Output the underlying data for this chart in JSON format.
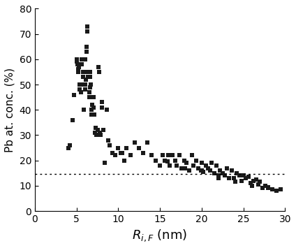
{
  "ylabel": "Pb at. conc. (%)",
  "xlim": [
    0,
    30
  ],
  "ylim": [
    0,
    80
  ],
  "xticks": [
    0,
    5,
    10,
    15,
    20,
    25,
    30
  ],
  "yticks": [
    0,
    10,
    20,
    30,
    40,
    50,
    60,
    70,
    80
  ],
  "dotted_line_y": 14.7,
  "marker_size": 16,
  "marker_color": "#1a1a1a",
  "scatter_x": [
    4.0,
    4.2,
    4.5,
    4.7,
    5.0,
    5.1,
    5.2,
    5.3,
    5.4,
    5.5,
    5.6,
    5.7,
    5.8,
    5.9,
    6.0,
    6.0,
    6.1,
    6.1,
    6.2,
    6.2,
    6.3,
    6.3,
    6.4,
    6.5,
    6.5,
    6.6,
    6.6,
    6.7,
    6.8,
    6.9,
    7.0,
    7.1,
    7.2,
    7.3,
    7.4,
    7.5,
    7.6,
    7.7,
    7.8,
    7.9,
    8.0,
    8.2,
    8.4,
    8.6,
    8.8,
    9.0,
    9.3,
    9.6,
    10.0,
    10.3,
    10.7,
    11.0,
    11.5,
    12.0,
    12.5,
    13.0,
    13.5,
    14.0,
    14.5,
    15.0,
    15.3,
    15.6,
    15.9,
    16.2,
    16.5,
    16.8,
    17.0,
    17.3,
    17.6,
    17.9,
    18.2,
    18.5,
    18.8,
    19.0,
    19.3,
    19.6,
    19.9,
    20.0,
    20.2,
    20.5,
    20.8,
    21.0,
    21.2,
    21.5,
    21.8,
    22.0,
    22.2,
    22.5,
    22.8,
    23.0,
    23.3,
    23.6,
    23.9,
    24.2,
    24.5,
    24.8,
    25.0,
    25.3,
    25.6,
    25.9,
    26.2,
    26.5,
    26.8,
    27.0,
    27.3,
    27.6,
    28.0,
    28.5,
    29.0,
    29.5,
    5.0,
    5.2,
    5.4,
    5.6,
    5.8,
    6.0,
    6.2,
    6.4,
    6.6,
    6.8,
    7.0,
    7.5,
    8.0,
    9.0,
    10.5,
    12.0,
    14.0,
    16.0,
    18.0,
    20.0,
    22.0,
    24.0,
    26.0,
    28.0
  ],
  "scatter_y": [
    25.0,
    26.0,
    36.0,
    46.0,
    60.0,
    58.0,
    56.0,
    57.0,
    50.0,
    47.0,
    60.0,
    50.0,
    55.0,
    40.0,
    50.0,
    48.0,
    55.0,
    52.0,
    65.0,
    63.0,
    73.0,
    71.0,
    55.0,
    47.0,
    45.0,
    55.0,
    53.0,
    50.0,
    40.0,
    42.0,
    45.0,
    38.0,
    31.0,
    33.0,
    30.0,
    32.0,
    57.0,
    55.0,
    31.0,
    30.0,
    43.0,
    32.0,
    19.0,
    40.0,
    28.0,
    26.0,
    23.0,
    22.0,
    25.0,
    23.0,
    20.0,
    25.0,
    22.0,
    27.0,
    25.0,
    23.0,
    27.0,
    22.0,
    20.0,
    18.0,
    22.0,
    20.0,
    19.5,
    18.0,
    22.0,
    20.0,
    18.0,
    22.0,
    17.0,
    20.0,
    19.0,
    16.0,
    22.0,
    18.0,
    20.0,
    17.0,
    16.0,
    19.0,
    15.5,
    18.0,
    17.0,
    16.0,
    19.0,
    15.0,
    18.0,
    14.0,
    16.0,
    15.0,
    14.0,
    17.0,
    13.0,
    16.0,
    13.0,
    15.0,
    14.0,
    12.0,
    14.0,
    13.0,
    13.5,
    11.0,
    12.0,
    12.5,
    10.5,
    11.5,
    9.0,
    10.0,
    9.5,
    8.5,
    8.0,
    8.5,
    59.0,
    55.0,
    48.0,
    58.0,
    53.0,
    60.0,
    63.0,
    53.0,
    49.0,
    38.0,
    41.0,
    32.0,
    41.0,
    26.0,
    23.0,
    27.0,
    22.0,
    22.0,
    17.0,
    16.0,
    13.0,
    11.5,
    10.0,
    9.0
  ]
}
